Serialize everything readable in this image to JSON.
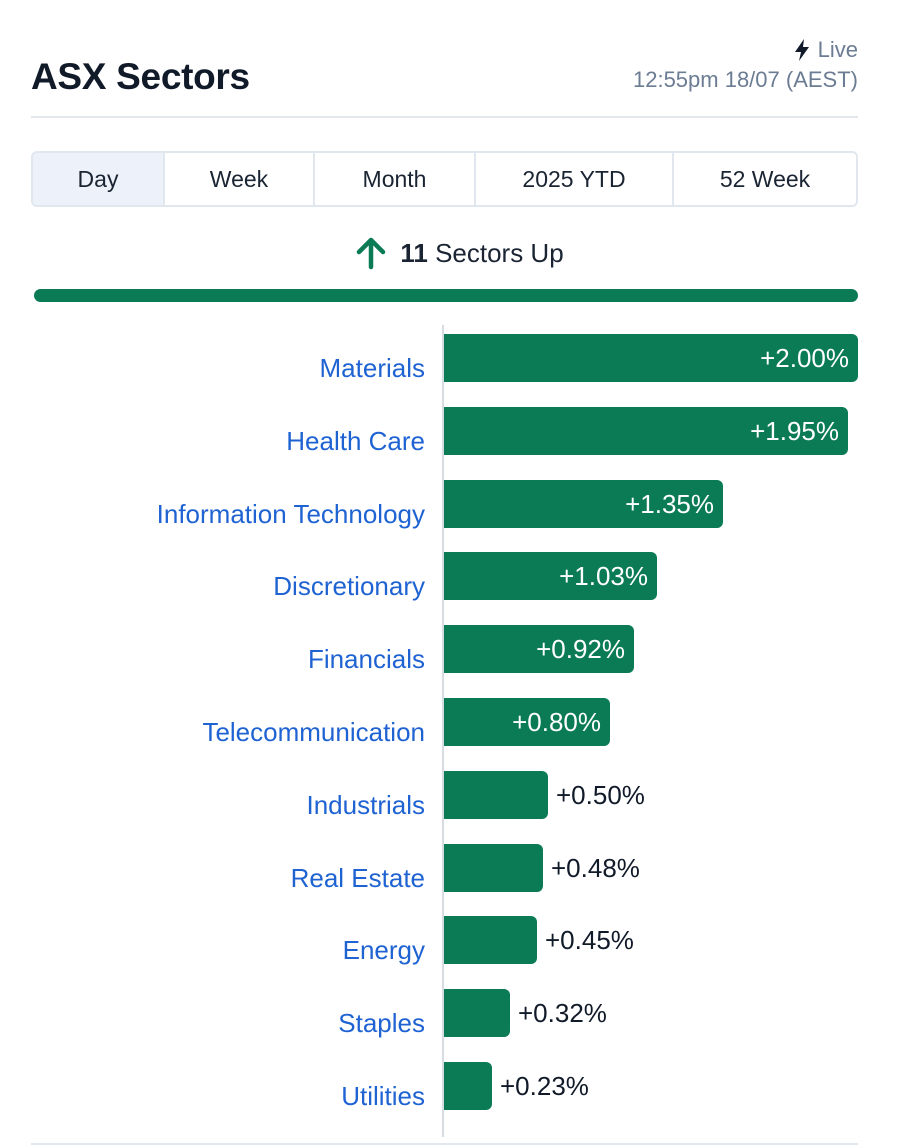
{
  "header": {
    "title": "ASX Sectors",
    "live_label": "Live",
    "timestamp": "12:55pm 18/07 (AEST)"
  },
  "tabs": [
    {
      "label": "Day",
      "active": true
    },
    {
      "label": "Week",
      "active": false
    },
    {
      "label": "Month",
      "active": false
    },
    {
      "label": "2025 YTD",
      "active": false
    },
    {
      "label": "52 Week",
      "active": false
    }
  ],
  "summary": {
    "count": "11",
    "text": "Sectors Up",
    "up_fraction": 1.0
  },
  "colors": {
    "positive": "#0b7b56",
    "link": "#1f63d3",
    "muted": "#6b7c93"
  },
  "chart_data": {
    "type": "bar",
    "orientation": "horizontal",
    "categories": [
      "Materials",
      "Health Care",
      "Information Technology",
      "Discretionary",
      "Financials",
      "Telecommunication",
      "Industrials",
      "Real Estate",
      "Energy",
      "Staples",
      "Utilities"
    ],
    "values": [
      2.0,
      1.95,
      1.35,
      1.03,
      0.92,
      0.8,
      0.5,
      0.48,
      0.45,
      0.32,
      0.23
    ],
    "value_labels": [
      "+2.00%",
      "+1.95%",
      "+1.35%",
      "+1.03%",
      "+0.92%",
      "+0.80%",
      "+0.50%",
      "+0.48%",
      "+0.45%",
      "+0.32%",
      "+0.23%"
    ],
    "xlim": [
      0,
      2.0
    ]
  }
}
